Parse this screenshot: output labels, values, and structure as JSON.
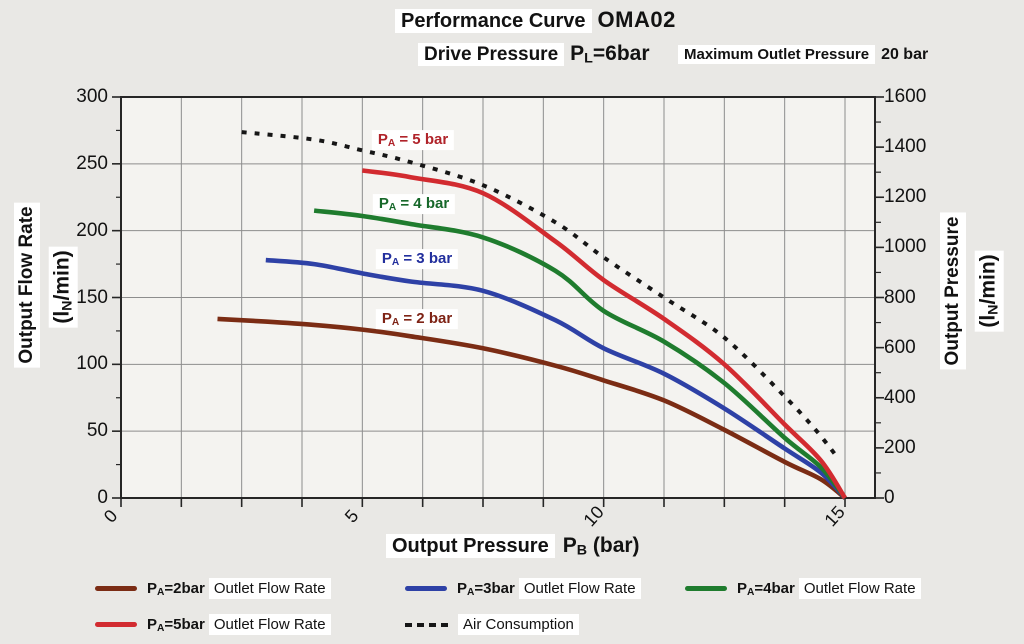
{
  "header": {
    "title_label": "Performance Curve",
    "title_value": "OMA02",
    "subtitle_label": "Drive Pressure",
    "subtitle_value": {
      "p": "P",
      "sub": "L",
      "rest": "=6bar"
    },
    "max_outlet_label": "Maximum Outlet Pressure",
    "max_outlet_value": "20 bar"
  },
  "axes": {
    "x": {
      "title_main": "Output Pressure",
      "title_sym": {
        "p": "P",
        "sub": "B"
      },
      "title_unit": "(bar)",
      "ticks": [
        0,
        5,
        10,
        15
      ],
      "range": [
        0,
        15
      ],
      "grid_step_bar": 1.25
    },
    "y_left": {
      "title": "Output Flow Rate",
      "unit": {
        "pre": "(l",
        "sub": "N",
        "post": "/min)"
      },
      "ticks": [
        300,
        250,
        200,
        150,
        100,
        50,
        0
      ],
      "range": [
        0,
        300
      ],
      "grid_step": 50,
      "minor_step": 25
    },
    "y_right": {
      "title": "Output Pressure",
      "unit": {
        "pre": "(l",
        "sub": "N",
        "post": "/min)"
      },
      "ticks": [
        1600,
        1400,
        1200,
        1000,
        800,
        600,
        400,
        200,
        0
      ],
      "range": [
        0,
        1600
      ],
      "minor_step": 100
    }
  },
  "chart_data": {
    "type": "line",
    "title": "Performance Curve OMA02",
    "xlabel": "Output Pressure PB (bar)",
    "ylabel_left": "Output Flow Rate (lN/min)",
    "ylabel_right": "Output Pressure (lN/min)",
    "xlim": [
      0,
      15
    ],
    "ylim_left": [
      0,
      300
    ],
    "ylim_right": [
      0,
      1600
    ],
    "grid": true,
    "series": [
      {
        "name": "PA=2bar Outlet Flow Rate",
        "axis": "left",
        "color": "#7b2c14",
        "style": "solid",
        "points": [
          [
            2,
            134
          ],
          [
            3,
            132
          ],
          [
            4,
            129.5
          ],
          [
            5,
            126
          ],
          [
            6,
            121
          ],
          [
            7.5,
            112
          ],
          [
            9,
            99
          ],
          [
            10,
            88
          ],
          [
            11.25,
            73
          ],
          [
            12.5,
            51
          ],
          [
            13.75,
            27
          ],
          [
            14.5,
            14
          ],
          [
            15,
            0
          ]
        ]
      },
      {
        "name": "PA=3bar Outlet Flow Rate",
        "axis": "left",
        "color": "#2e41a6",
        "style": "solid",
        "points": [
          [
            3,
            178
          ],
          [
            4,
            175
          ],
          [
            5,
            168
          ],
          [
            6,
            162
          ],
          [
            7.5,
            155
          ],
          [
            9,
            133
          ],
          [
            10,
            112
          ],
          [
            11.25,
            93
          ],
          [
            12.5,
            67
          ],
          [
            13.75,
            37
          ],
          [
            14.5,
            19
          ],
          [
            15,
            0
          ]
        ]
      },
      {
        "name": "PA=4bar Outlet Flow Rate",
        "axis": "left",
        "color": "#1f7c2e",
        "style": "solid",
        "points": [
          [
            4,
            215
          ],
          [
            5,
            211
          ],
          [
            6,
            205
          ],
          [
            7.5,
            195
          ],
          [
            9,
            170
          ],
          [
            10,
            140
          ],
          [
            11.25,
            117
          ],
          [
            12.5,
            86
          ],
          [
            13.75,
            45
          ],
          [
            14.5,
            23
          ],
          [
            15,
            0
          ]
        ]
      },
      {
        "name": "PA=5bar Outlet Flow Rate",
        "axis": "left",
        "color": "#d22b30",
        "style": "solid",
        "points": [
          [
            5,
            245
          ],
          [
            6,
            240
          ],
          [
            7.5,
            228
          ],
          [
            9,
            192
          ],
          [
            10,
            163
          ],
          [
            11.25,
            134
          ],
          [
            12.5,
            100
          ],
          [
            13.75,
            55
          ],
          [
            14.5,
            28
          ],
          [
            15,
            0
          ]
        ]
      },
      {
        "name": "Air Consumption",
        "axis": "right",
        "color": "#161616",
        "style": "dashed",
        "points": [
          [
            2.5,
            1460
          ],
          [
            4,
            1430
          ],
          [
            5,
            1387
          ],
          [
            6,
            1340
          ],
          [
            7.5,
            1248
          ],
          [
            9,
            1100
          ],
          [
            10,
            960
          ],
          [
            11.25,
            800
          ],
          [
            12.5,
            640
          ],
          [
            13.75,
            405
          ],
          [
            14.4,
            270
          ],
          [
            14.85,
            160
          ]
        ]
      }
    ],
    "curve_labels": [
      {
        "p": "P",
        "sub": "A",
        "rest": " = 5 bar",
        "color": "#b0232a",
        "x": 6.05,
        "flow": 268
      },
      {
        "p": "P",
        "sub": "A",
        "rest": " = 4 bar",
        "color": "#17682a",
        "x": 6.07,
        "flow": 220
      },
      {
        "p": "P",
        "sub": "A",
        "rest": " = 3 bar",
        "color": "#222f9d",
        "x": 6.13,
        "flow": 179
      },
      {
        "p": "P",
        "sub": "A",
        "rest": " = 2 bar",
        "color": "#7e2315",
        "x": 6.13,
        "flow": 134
      }
    ]
  },
  "legend": {
    "items": [
      {
        "p": "P",
        "sub": "A",
        "eq": "=2bar",
        "label": "Outlet Flow Rate",
        "color": "#7b2c14",
        "dashed": false,
        "row": 0,
        "col": 0
      },
      {
        "p": "P",
        "sub": "A",
        "eq": "=3bar",
        "label": "Outlet Flow Rate",
        "color": "#2e41a6",
        "dashed": false,
        "row": 0,
        "col": 1
      },
      {
        "p": "P",
        "sub": "A",
        "eq": "=4bar",
        "label": "Outlet Flow Rate",
        "color": "#1f7c2e",
        "dashed": false,
        "row": 0,
        "col": 2
      },
      {
        "p": "P",
        "sub": "A",
        "eq": "=5bar",
        "label": "Outlet Flow Rate",
        "color": "#d22b30",
        "dashed": false,
        "row": 1,
        "col": 0
      },
      {
        "p": "",
        "sub": "",
        "eq": "",
        "label": "Air Consumption",
        "color": "#161616",
        "dashed": true,
        "row": 1,
        "col": 1
      }
    ]
  },
  "colors": {
    "page_bg": "#e9e8e5",
    "plot_bg": "#f4f3f0",
    "grid": "#8d8d8d",
    "border": "#262626",
    "text": "#121212"
  }
}
